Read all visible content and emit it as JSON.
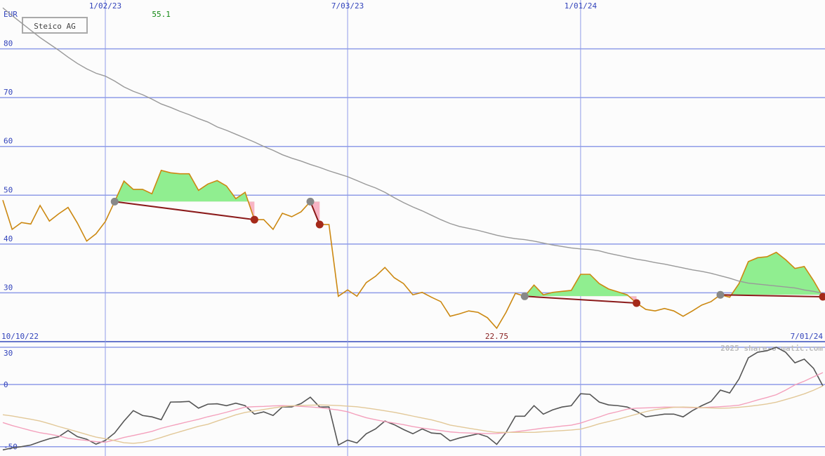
{
  "chart_data": [
    {
      "type": "line",
      "title": "Steico AG",
      "unit": "EUR",
      "categories": [
        "10/10/22",
        null,
        null,
        null,
        null,
        null,
        null,
        null,
        null,
        null,
        null,
        "1/02/23",
        null,
        null,
        null,
        null,
        null,
        null,
        null,
        null,
        null,
        null,
        null,
        null,
        null,
        null,
        null,
        null,
        null,
        null,
        null,
        null,
        null,
        null,
        null,
        null,
        null,
        "7/03/23",
        null,
        null,
        null,
        null,
        null,
        null,
        null,
        null,
        null,
        null,
        null,
        null,
        null,
        null,
        null,
        null,
        null,
        null,
        null,
        null,
        null,
        null,
        null,
        null,
        "1/01/24",
        null,
        null,
        null,
        null,
        null,
        null,
        null,
        null,
        null,
        null,
        null,
        null,
        null,
        null,
        null,
        null,
        null,
        null,
        null,
        null,
        null,
        null,
        null,
        null,
        null,
        "7/01/24"
      ],
      "series": [
        {
          "color": "#cc8811",
          "values": [
            49,
            43,
            44.4,
            44.1,
            47.9,
            44.7,
            46.2,
            47.5,
            44.3,
            40.6,
            42.1,
            44.6,
            48.7,
            52.9,
            51.2,
            51.2,
            50.3,
            55.1,
            54.6,
            54.4,
            54.4,
            51,
            52.3,
            53,
            51.9,
            49.3,
            50.6,
            45,
            45,
            43,
            46.3,
            45.6,
            46.6,
            48.7,
            44,
            44,
            29.3,
            30.6,
            29.3,
            32.1,
            33.4,
            35.2,
            33.1,
            31.9,
            29.6,
            30.1,
            29.1,
            28.2,
            25.2,
            25.7,
            26.3,
            26,
            24.9,
            22.75,
            26,
            29.9,
            29.3,
            31.6,
            29.6,
            30.1,
            30.3,
            30.5,
            33.8,
            33.8,
            31.9,
            30.8,
            30.2,
            29.6,
            27.9,
            26.6,
            26.3,
            26.8,
            26.3,
            25.2,
            26.3,
            27.5,
            28.2,
            29.6,
            29.1,
            31.9,
            36.4,
            37.2,
            37.4,
            38.3,
            36.8,
            35,
            35.4,
            32.5,
            29.2
          ]
        },
        {
          "color": "#999999",
          "values": [
            88.4,
            86.8,
            85.3,
            83.8,
            82.3,
            81,
            79.7,
            78.3,
            77,
            75.9,
            75,
            74.4,
            73.4,
            72.2,
            71.3,
            70.6,
            69.7,
            68.7,
            68,
            67.2,
            66.5,
            65.7,
            65,
            64,
            63.3,
            62.5,
            61.7,
            60.9,
            60,
            59.2,
            58.3,
            57.6,
            57,
            56.3,
            55.7,
            55,
            54.4,
            53.8,
            53,
            52.2,
            51.5,
            50.6,
            49.5,
            48.5,
            47.6,
            46.8,
            45.9,
            45,
            44.2,
            43.6,
            43.2,
            42.8,
            42.3,
            41.8,
            41.4,
            41.1,
            40.9,
            40.6,
            40.2,
            39.8,
            39.5,
            39.2,
            39,
            38.9,
            38.6,
            38.1,
            37.7,
            37.3,
            36.9,
            36.6,
            36.2,
            35.9,
            35.5,
            35.1,
            34.7,
            34.4,
            34,
            33.5,
            33,
            32.4,
            32,
            31.8,
            31.6,
            31.4,
            31.2,
            31,
            30.6,
            30.3,
            29.9
          ]
        }
      ],
      "trends": [
        {
          "start": 12,
          "end": 27
        },
        {
          "start": 33,
          "end": 34
        },
        {
          "start": 56,
          "end": 68
        },
        {
          "start": 77,
          "end": 88
        }
      ],
      "ylim": [
        20,
        90
      ],
      "yticks": [
        30,
        40,
        50,
        60,
        70,
        80
      ],
      "grid": true
    },
    {
      "type": "line",
      "source": "2025 share-o-matic.com",
      "series": [
        {
          "color": "#555555",
          "values": [
            -52.6,
            -51,
            -50,
            -48.7,
            -46,
            -43.6,
            -42,
            -37,
            -41.9,
            -44,
            -48,
            -45,
            -39,
            -29.4,
            -21,
            -24.9,
            -26,
            -28.3,
            -14.1,
            -14,
            -13.6,
            -19,
            -15.8,
            -15.5,
            -17,
            -15,
            -17,
            -23.8,
            -22,
            -24.9,
            -18,
            -18,
            -15.3,
            -10.2,
            -18.1,
            -18,
            -48.7,
            -44.7,
            -47,
            -39.6,
            -35.7,
            -29.4,
            -32.3,
            -36.2,
            -39.6,
            -35.7,
            -39,
            -39.6,
            -45.3,
            -43,
            -41.3,
            -39.6,
            -42,
            -48.1,
            -38.5,
            -25.5,
            -25.5,
            -17,
            -23.8,
            -20.4,
            -18.1,
            -17,
            -7.4,
            -7.9,
            -14.1,
            -16.4,
            -17,
            -18.1,
            -21.5,
            -26,
            -24.9,
            -23.8,
            -23.8,
            -26,
            -21,
            -17,
            -13.6,
            -4.5,
            -6.8,
            4.5,
            21.5,
            26,
            27.2,
            30,
            26,
            17.5,
            20.4,
            13,
            -1.1
          ]
        },
        {
          "color": "#f4a0bc",
          "values": [
            -30.6,
            -33,
            -35,
            -37,
            -38.8,
            -40,
            -41.3,
            -43.3,
            -44.2,
            -45,
            -46,
            -46.4,
            -44.6,
            -42.6,
            -41,
            -39.4,
            -37.7,
            -35.2,
            -33.3,
            -31.5,
            -29.7,
            -28,
            -25.9,
            -24.2,
            -22.3,
            -20.2,
            -18.2,
            -17.8,
            -17.6,
            -17.2,
            -17,
            -17.2,
            -17.6,
            -18,
            -18.6,
            -19.6,
            -20.5,
            -21.9,
            -24.4,
            -26.7,
            -28.3,
            -29.8,
            -31,
            -32.3,
            -33.8,
            -35,
            -36,
            -37.1,
            -38.1,
            -38.7,
            -39,
            -39.3,
            -39.5,
            -39.4,
            -38.7,
            -38,
            -37.1,
            -36.1,
            -35,
            -34.3,
            -33.4,
            -32.7,
            -31,
            -28.5,
            -26.1,
            -23.5,
            -21.8,
            -19.8,
            -19,
            -18.8,
            -18.5,
            -18.2,
            -18.2,
            -18.4,
            -18.6,
            -18.7,
            -18.2,
            -17.8,
            -17.3,
            -16.6,
            -14.6,
            -12.4,
            -10.4,
            -8.2,
            -4.5,
            -0.3,
            2.7,
            6.2,
            9.6
          ]
        },
        {
          "color": "#e2c898",
          "values": [
            -24.3,
            -25.3,
            -26.6,
            -27.9,
            -29.4,
            -31.5,
            -33.8,
            -35.9,
            -38,
            -40.2,
            -42.3,
            -43.6,
            -45.1,
            -46.8,
            -47.3,
            -46.6,
            -44.8,
            -42.6,
            -40.2,
            -38,
            -35.8,
            -33.6,
            -32,
            -29.4,
            -26.9,
            -24.4,
            -22.5,
            -21.3,
            -20.1,
            -18.9,
            -17.8,
            -17.1,
            -16.8,
            -16.6,
            -16.4,
            -16.6,
            -16.9,
            -17.4,
            -17.9,
            -18.9,
            -19.9,
            -21.1,
            -22.3,
            -23.8,
            -25.4,
            -26.9,
            -28.4,
            -30.4,
            -32.6,
            -33.9,
            -35.2,
            -36.4,
            -37.6,
            -38.5,
            -38.5,
            -38.5,
            -38.5,
            -38.5,
            -38,
            -37.5,
            -37.1,
            -36.6,
            -35.9,
            -33.9,
            -31.6,
            -29.8,
            -28,
            -25.9,
            -23.9,
            -21.8,
            -20.2,
            -19.2,
            -18.3,
            -18.1,
            -18.3,
            -18.6,
            -18.9,
            -19.1,
            -18.9,
            -18.3,
            -17.6,
            -16.7,
            -15.6,
            -14.2,
            -12.1,
            -9.9,
            -7.5,
            -4.6,
            -1.1
          ]
        }
      ],
      "ylim": [
        -57.5,
        34.5
      ],
      "yticks": [
        30,
        0,
        -50
      ],
      "grid": true
    }
  ]
}
